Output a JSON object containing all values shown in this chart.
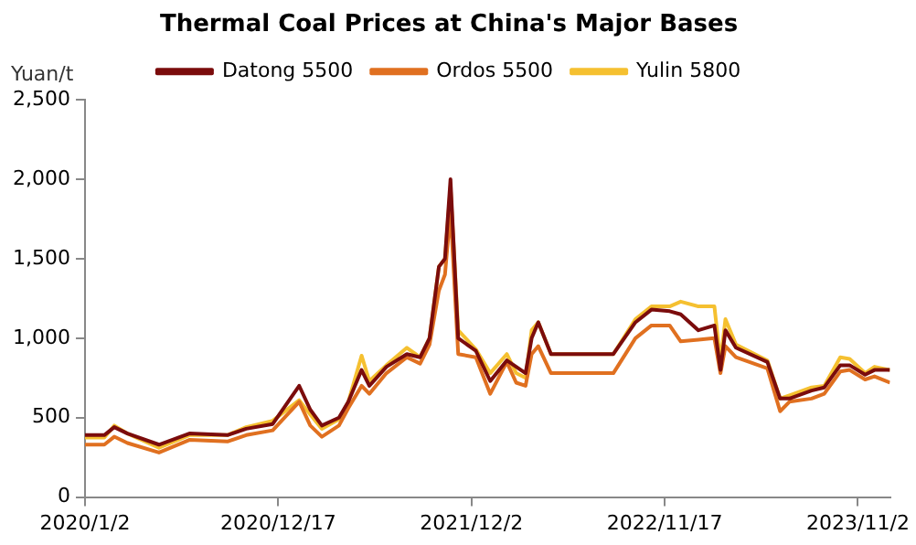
{
  "chart_data": {
    "type": "line",
    "title": "Thermal Coal Prices at China's Major Bases",
    "ylabel": "Yuan/t",
    "x": [
      "2020-01-02",
      "2020-02-06",
      "2020-02-24",
      "2020-03-19",
      "2020-05-15",
      "2020-07-09",
      "2020-09-16",
      "2020-10-20",
      "2020-12-07",
      "2021-01-24",
      "2021-02-13",
      "2021-03-06",
      "2021-04-06",
      "2021-04-23",
      "2021-05-17",
      "2021-05-31",
      "2021-07-01",
      "2021-08-07",
      "2021-08-31",
      "2021-09-17",
      "2021-10-04",
      "2021-10-15",
      "2021-10-25",
      "2021-11-08",
      "2021-12-10",
      "2022-01-05",
      "2022-02-04",
      "2022-02-21",
      "2022-03-10",
      "2022-03-21",
      "2022-04-02",
      "2022-04-25",
      "2022-08-16",
      "2022-09-25",
      "2022-10-24",
      "2022-11-26",
      "2022-12-16",
      "2023-01-17",
      "2023-02-15",
      "2023-02-26",
      "2023-03-07",
      "2023-03-26",
      "2023-05-22",
      "2023-06-14",
      "2023-07-01",
      "2023-08-10",
      "2023-09-02",
      "2023-10-01",
      "2023-10-18",
      "2023-11-15",
      "2023-12-02",
      "2023-12-30"
    ],
    "series": [
      {
        "name": "Datong 5500",
        "color": "#7b0c0c",
        "values": [
          390,
          390,
          440,
          400,
          330,
          400,
          390,
          430,
          460,
          700,
          550,
          450,
          500,
          600,
          800,
          700,
          820,
          900,
          880,
          1000,
          1450,
          1500,
          2000,
          1000,
          920,
          730,
          860,
          820,
          780,
          1000,
          1100,
          900,
          900,
          1100,
          1180,
          1170,
          1150,
          1050,
          1080,
          800,
          1050,
          940,
          850,
          620,
          620,
          670,
          690,
          830,
          830,
          770,
          800,
          800
        ]
      },
      {
        "name": "Ordos 5500",
        "color": "#e07020",
        "values": [
          330,
          330,
          380,
          340,
          280,
          360,
          350,
          390,
          420,
          600,
          450,
          380,
          450,
          560,
          700,
          650,
          780,
          880,
          840,
          960,
          1300,
          1400,
          1800,
          900,
          880,
          650,
          850,
          720,
          700,
          900,
          950,
          780,
          780,
          1000,
          1080,
          1080,
          980,
          990,
          1000,
          780,
          950,
          880,
          810,
          540,
          600,
          620,
          650,
          790,
          800,
          740,
          760,
          720
        ]
      },
      {
        "name": "Yulin 5800",
        "color": "#f5c030",
        "values": [
          375,
          375,
          450,
          400,
          310,
          390,
          390,
          440,
          480,
          610,
          520,
          430,
          490,
          600,
          890,
          730,
          830,
          940,
          880,
          1000,
          1450,
          1500,
          1950,
          1050,
          930,
          780,
          900,
          780,
          750,
          1050,
          1100,
          900,
          900,
          1120,
          1200,
          1200,
          1230,
          1200,
          1200,
          850,
          1120,
          960,
          860,
          620,
          640,
          690,
          700,
          880,
          870,
          780,
          820,
          800
        ]
      }
    ],
    "xlim": [
      "2020-01-02",
      "2023-12-30"
    ],
    "xticks": [
      {
        "value": "2020-01-02",
        "label": "2020/1/2"
      },
      {
        "value": "2020-12-17",
        "label": "2020/12/17"
      },
      {
        "value": "2021-12-02",
        "label": "2021/12/2"
      },
      {
        "value": "2022-11-17",
        "label": "2022/11/17"
      },
      {
        "value": "2023-11-02",
        "label": "2023/11/2"
      }
    ],
    "ylim": [
      0,
      2500
    ],
    "yticks": [
      0,
      500,
      {
        "value": 1000,
        "label": "1,000"
      },
      {
        "value": 1500,
        "label": "1,500"
      },
      {
        "value": 2000,
        "label": "2,000"
      },
      {
        "value": 2500,
        "label": "2,500"
      }
    ],
    "grid": false,
    "legend": "top",
    "marker": "none",
    "line_style": "solid"
  }
}
